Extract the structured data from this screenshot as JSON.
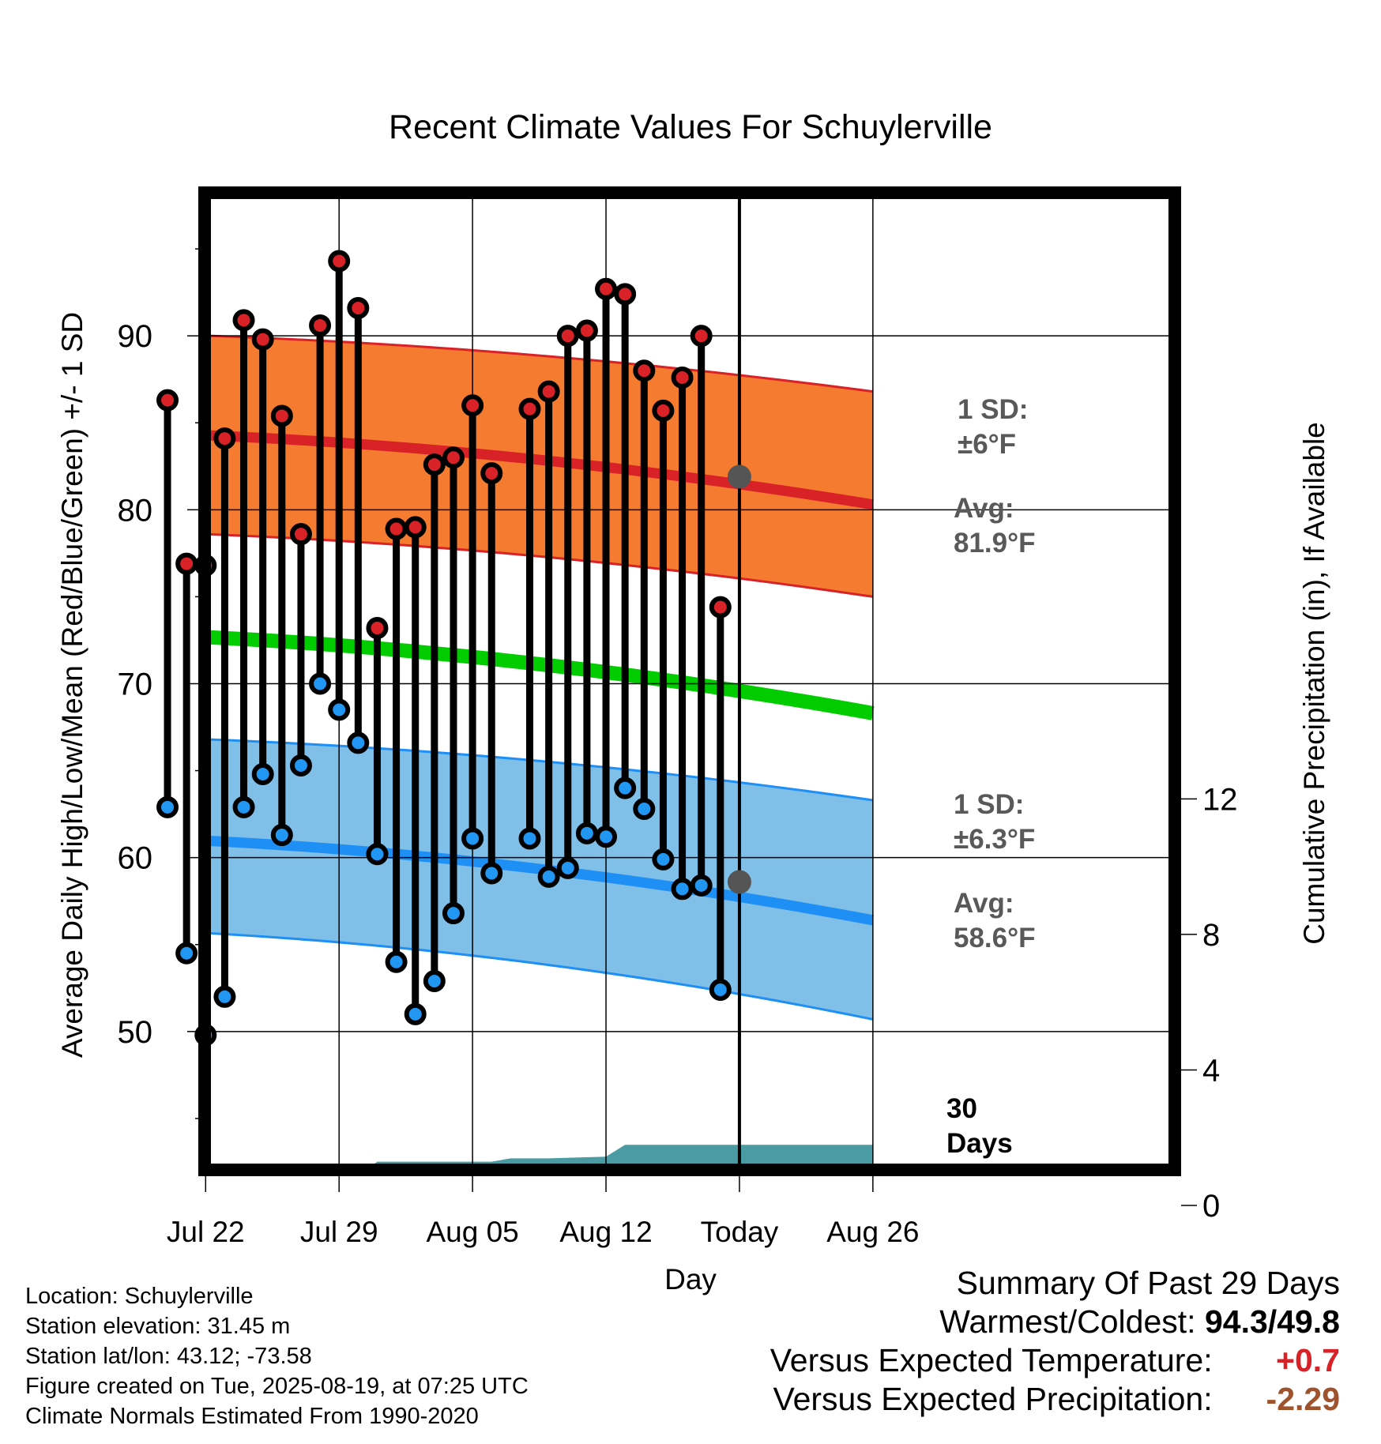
{
  "chart_data": {
    "type": "line",
    "title": "Recent Climate Values For Schuylerville",
    "xlabel": "Day",
    "ylabel": "Average Daily High/Low/Mean (Red/Blue/Green) +/- 1 SD",
    "y2label": "Cumulative Precipitation (in), If Available",
    "ylim": [
      40,
      100
    ],
    "y2lim": [
      0,
      30.8
    ],
    "yticks": [
      50,
      60,
      70,
      80,
      90
    ],
    "y2ticks": [
      0,
      4,
      8,
      12
    ],
    "xlim": [
      -3.7,
      54.4
    ],
    "xticks": [
      {
        "day": 0,
        "label": "Jul 22"
      },
      {
        "day": 7,
        "label": "Jul 29"
      },
      {
        "day": 14,
        "label": "Aug 05"
      },
      {
        "day": 21,
        "label": "Aug 12"
      },
      {
        "day": 28,
        "label": "Today"
      },
      {
        "day": 35,
        "label": "Aug 26"
      }
    ],
    "today": 28,
    "grid": true,
    "daily": {
      "x": [
        -2,
        -1,
        0,
        1,
        2,
        3,
        4,
        5,
        6,
        7,
        8,
        9,
        10,
        11,
        12,
        13,
        14,
        15,
        17,
        18,
        19,
        20,
        21,
        22,
        23,
        24,
        25,
        26,
        27
      ],
      "high": [
        86.3,
        76.9,
        76.8,
        84.1,
        90.9,
        89.8,
        85.4,
        78.6,
        90.6,
        94.3,
        91.6,
        73.2,
        78.9,
        79.0,
        82.6,
        83.0,
        86.0,
        82.1,
        85.8,
        86.8,
        90.0,
        90.3,
        92.7,
        92.4,
        88.0,
        85.7,
        87.6,
        90.0,
        74.4
      ],
      "low": [
        62.9,
        54.5,
        49.8,
        52.0,
        62.9,
        64.8,
        61.3,
        65.3,
        70.0,
        68.5,
        66.6,
        60.2,
        54.0,
        51.0,
        52.9,
        56.8,
        61.1,
        59.1,
        61.1,
        58.9,
        59.4,
        61.4,
        61.2,
        64.0,
        62.8,
        59.9,
        58.2,
        58.4,
        52.4
      ]
    },
    "normals": {
      "x": [
        -2.6,
        35
      ],
      "high_mean": [
        84.4,
        80.3
      ],
      "high_upper": [
        90.1,
        86.8
      ],
      "high_lower": [
        78.7,
        75.0
      ],
      "mean": [
        72.8,
        68.3
      ],
      "low_mean": [
        61.1,
        56.4
      ],
      "low_upper": [
        66.9,
        63.3
      ],
      "low_lower": [
        55.8,
        50.7
      ]
    },
    "precip": {
      "x": [
        -2.6,
        3.6,
        4.6,
        7.0,
        8.0,
        9.0,
        13.0,
        15.0,
        16.0,
        18.0,
        21.0,
        22.0,
        35.0
      ],
      "cum": [
        0,
        0,
        0.86,
        0.86,
        0.86,
        1.29,
        1.29,
        1.29,
        1.39,
        1.39,
        1.44,
        1.79,
        1.79
      ]
    },
    "annotations": {
      "high_sd": [
        "1 SD:",
        "±6°F"
      ],
      "high_avg": [
        "Avg:",
        "81.9°F"
      ],
      "low_sd": [
        "1 SD:",
        "±6.3°F"
      ],
      "low_avg": [
        "Avg:",
        "58.6°F"
      ],
      "precip_days": [
        "30",
        "Days"
      ]
    },
    "colors": {
      "high_band": "#f47b30",
      "high_line": "#d92227",
      "mean_line": "#00cc00",
      "low_band": "#80bfe7",
      "low_line": "#1e8ff5",
      "precip": "#4a9ba3",
      "high_dot": "#d92227",
      "low_dot": "#2196f3",
      "annotation": "#595959"
    }
  },
  "info": {
    "location": "Location: Schuylerville",
    "elevation": "Station elevation: 31.45 m",
    "latlon": "Station lat/lon: 43.12; -73.58",
    "created": "Figure created on Tue, 2025-08-19, at 07:25 UTC",
    "normals": "Climate Normals Estimated From 1990-2020"
  },
  "summary": {
    "title": "Summary Of Past 29 Days",
    "warm_cold_label": "Warmest/Coldest:",
    "warmest": "94.3",
    "coldest": "49.8",
    "temp_label": "Versus Expected Temperature:",
    "temp_value": "+0.7",
    "temp_color": "#d92227",
    "precip_label": "Versus Expected Precipitation:",
    "precip_value": "-2.29",
    "precip_color": "#a0522d"
  }
}
